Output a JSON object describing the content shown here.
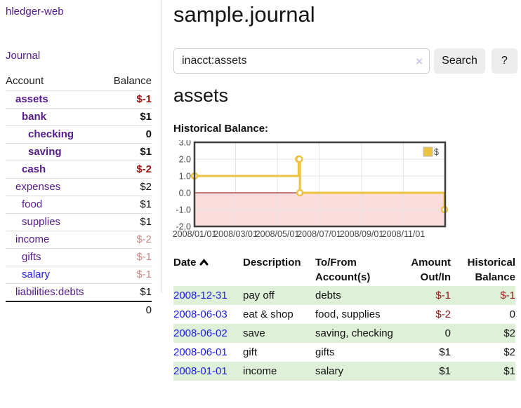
{
  "sidebar": {
    "app_title": "hledger-web",
    "journal_label": "Journal",
    "accounts_table": {
      "account_header": "Account",
      "balance_header": "Balance",
      "rows": [
        {
          "name": "assets",
          "indent": 1,
          "bold": true,
          "balance": "$-1",
          "balance_style": "neg-b"
        },
        {
          "name": "bank",
          "indent": 2,
          "bold": true,
          "balance": "$1",
          "balance_style": "pos-b"
        },
        {
          "name": "checking",
          "indent": 3,
          "bold": true,
          "balance": "0",
          "balance_style": "pos-b"
        },
        {
          "name": "saving",
          "indent": 3,
          "bold": true,
          "balance": "$1",
          "balance_style": "pos-b"
        },
        {
          "name": "cash",
          "indent": 2,
          "bold": true,
          "balance": "$-2",
          "balance_style": "neg-b"
        },
        {
          "name": "expenses",
          "indent": 1,
          "bold": false,
          "balance": "$2",
          "balance_style": "pos"
        },
        {
          "name": "food",
          "indent": 2,
          "bold": false,
          "balance": "$1",
          "balance_style": "pos"
        },
        {
          "name": "supplies",
          "indent": 2,
          "bold": false,
          "balance": "$1",
          "balance_style": "pos"
        },
        {
          "name": "income",
          "indent": 1,
          "bold": false,
          "balance": "$-2",
          "balance_style": "neg-light"
        },
        {
          "name": "gifts",
          "indent": 2,
          "bold": false,
          "balance": "$-1",
          "balance_style": "neg-light"
        },
        {
          "name": "salary",
          "indent": 2,
          "bold": false,
          "balance": "$-1",
          "balance_style": "neg-light",
          "link_color": "blue"
        },
        {
          "name": "liabilities:debts",
          "indent": 1,
          "bold": false,
          "balance": "$1",
          "balance_style": "pos"
        }
      ],
      "total": "0"
    }
  },
  "header": {
    "title": "sample.journal"
  },
  "search": {
    "query": "inacct:assets",
    "clear_icon": "×",
    "button_label": "Search",
    "help_label": "?"
  },
  "account_page": {
    "heading": "assets",
    "chart_heading": "Historical Balance:"
  },
  "chart_data": {
    "type": "line",
    "step": true,
    "title": "Historical Balance:",
    "series": [
      {
        "name": "$",
        "color": "#edc240",
        "points": [
          [
            "2008-01-01",
            1
          ],
          [
            "2008-06-01",
            2
          ],
          [
            "2008-06-02",
            2
          ],
          [
            "2008-06-03",
            0
          ],
          [
            "2008-12-31",
            -1
          ]
        ]
      }
    ],
    "xlim": [
      "2008-01-01",
      "2009-01-01"
    ],
    "ylim": [
      -2,
      3
    ],
    "x_tick_labels": [
      "2008/01/01",
      "2008/03/01",
      "2008/05/01",
      "2008/07/01",
      "2008/09/01",
      "2008/11/01"
    ],
    "x_tick_dates": [
      "2008-01-01",
      "2008-03-01",
      "2008-05-01",
      "2008-07-01",
      "2008-09-01",
      "2008-11-01"
    ],
    "y_ticks": [
      "3.0",
      "2.0",
      "1.0",
      "0.0",
      "-1.0",
      "-2.0"
    ],
    "legend": {
      "label": "$",
      "position": "top-right"
    },
    "grid": true,
    "negative_region_color": "#fadcdc",
    "zero_line_color": "#8b0000",
    "border_color": "#3f3f3f",
    "grid_color": "#e3e3e3"
  },
  "register": {
    "headers": {
      "date": "Date",
      "description": "Description",
      "accounts_line1": "To/From",
      "accounts_line2": "Account(s)",
      "amount_line1": "Amount",
      "amount_line2": "Out/In",
      "balance_line1": "Historical",
      "balance_line2": "Balance"
    },
    "rows": [
      {
        "date": "2008-12-31",
        "description": "pay off",
        "accounts": "debts",
        "amount": "$-1",
        "amount_style": "neg",
        "balance": "$-1",
        "balance_style": "neg"
      },
      {
        "date": "2008-06-03",
        "description": "eat & shop",
        "accounts": "food, supplies",
        "amount": "$-2",
        "amount_style": "neg",
        "balance": "0",
        "balance_style": "pos"
      },
      {
        "date": "2008-06-02",
        "description": "save",
        "accounts": "saving, checking",
        "amount": "0",
        "amount_style": "pos",
        "balance": "$2",
        "balance_style": "pos"
      },
      {
        "date": "2008-06-01",
        "description": "gift",
        "accounts": "gifts",
        "amount": "$1",
        "amount_style": "pos",
        "balance": "$2",
        "balance_style": "pos"
      },
      {
        "date": "2008-01-01",
        "description": "income",
        "accounts": "salary",
        "amount": "$1",
        "amount_style": "pos",
        "balance": "$1",
        "balance_style": "pos"
      }
    ]
  },
  "colors": {
    "link_purple": "#551a8b",
    "link_blue": "#1a1ae0",
    "negative_dark": "#951414",
    "negative_light": "#c98a8a",
    "stripe_green": "#dff0d8",
    "chart_line_yellow": "#edc240",
    "chart_negative_fill": "#fadcdc",
    "zero_line_red": "#8b0000"
  }
}
